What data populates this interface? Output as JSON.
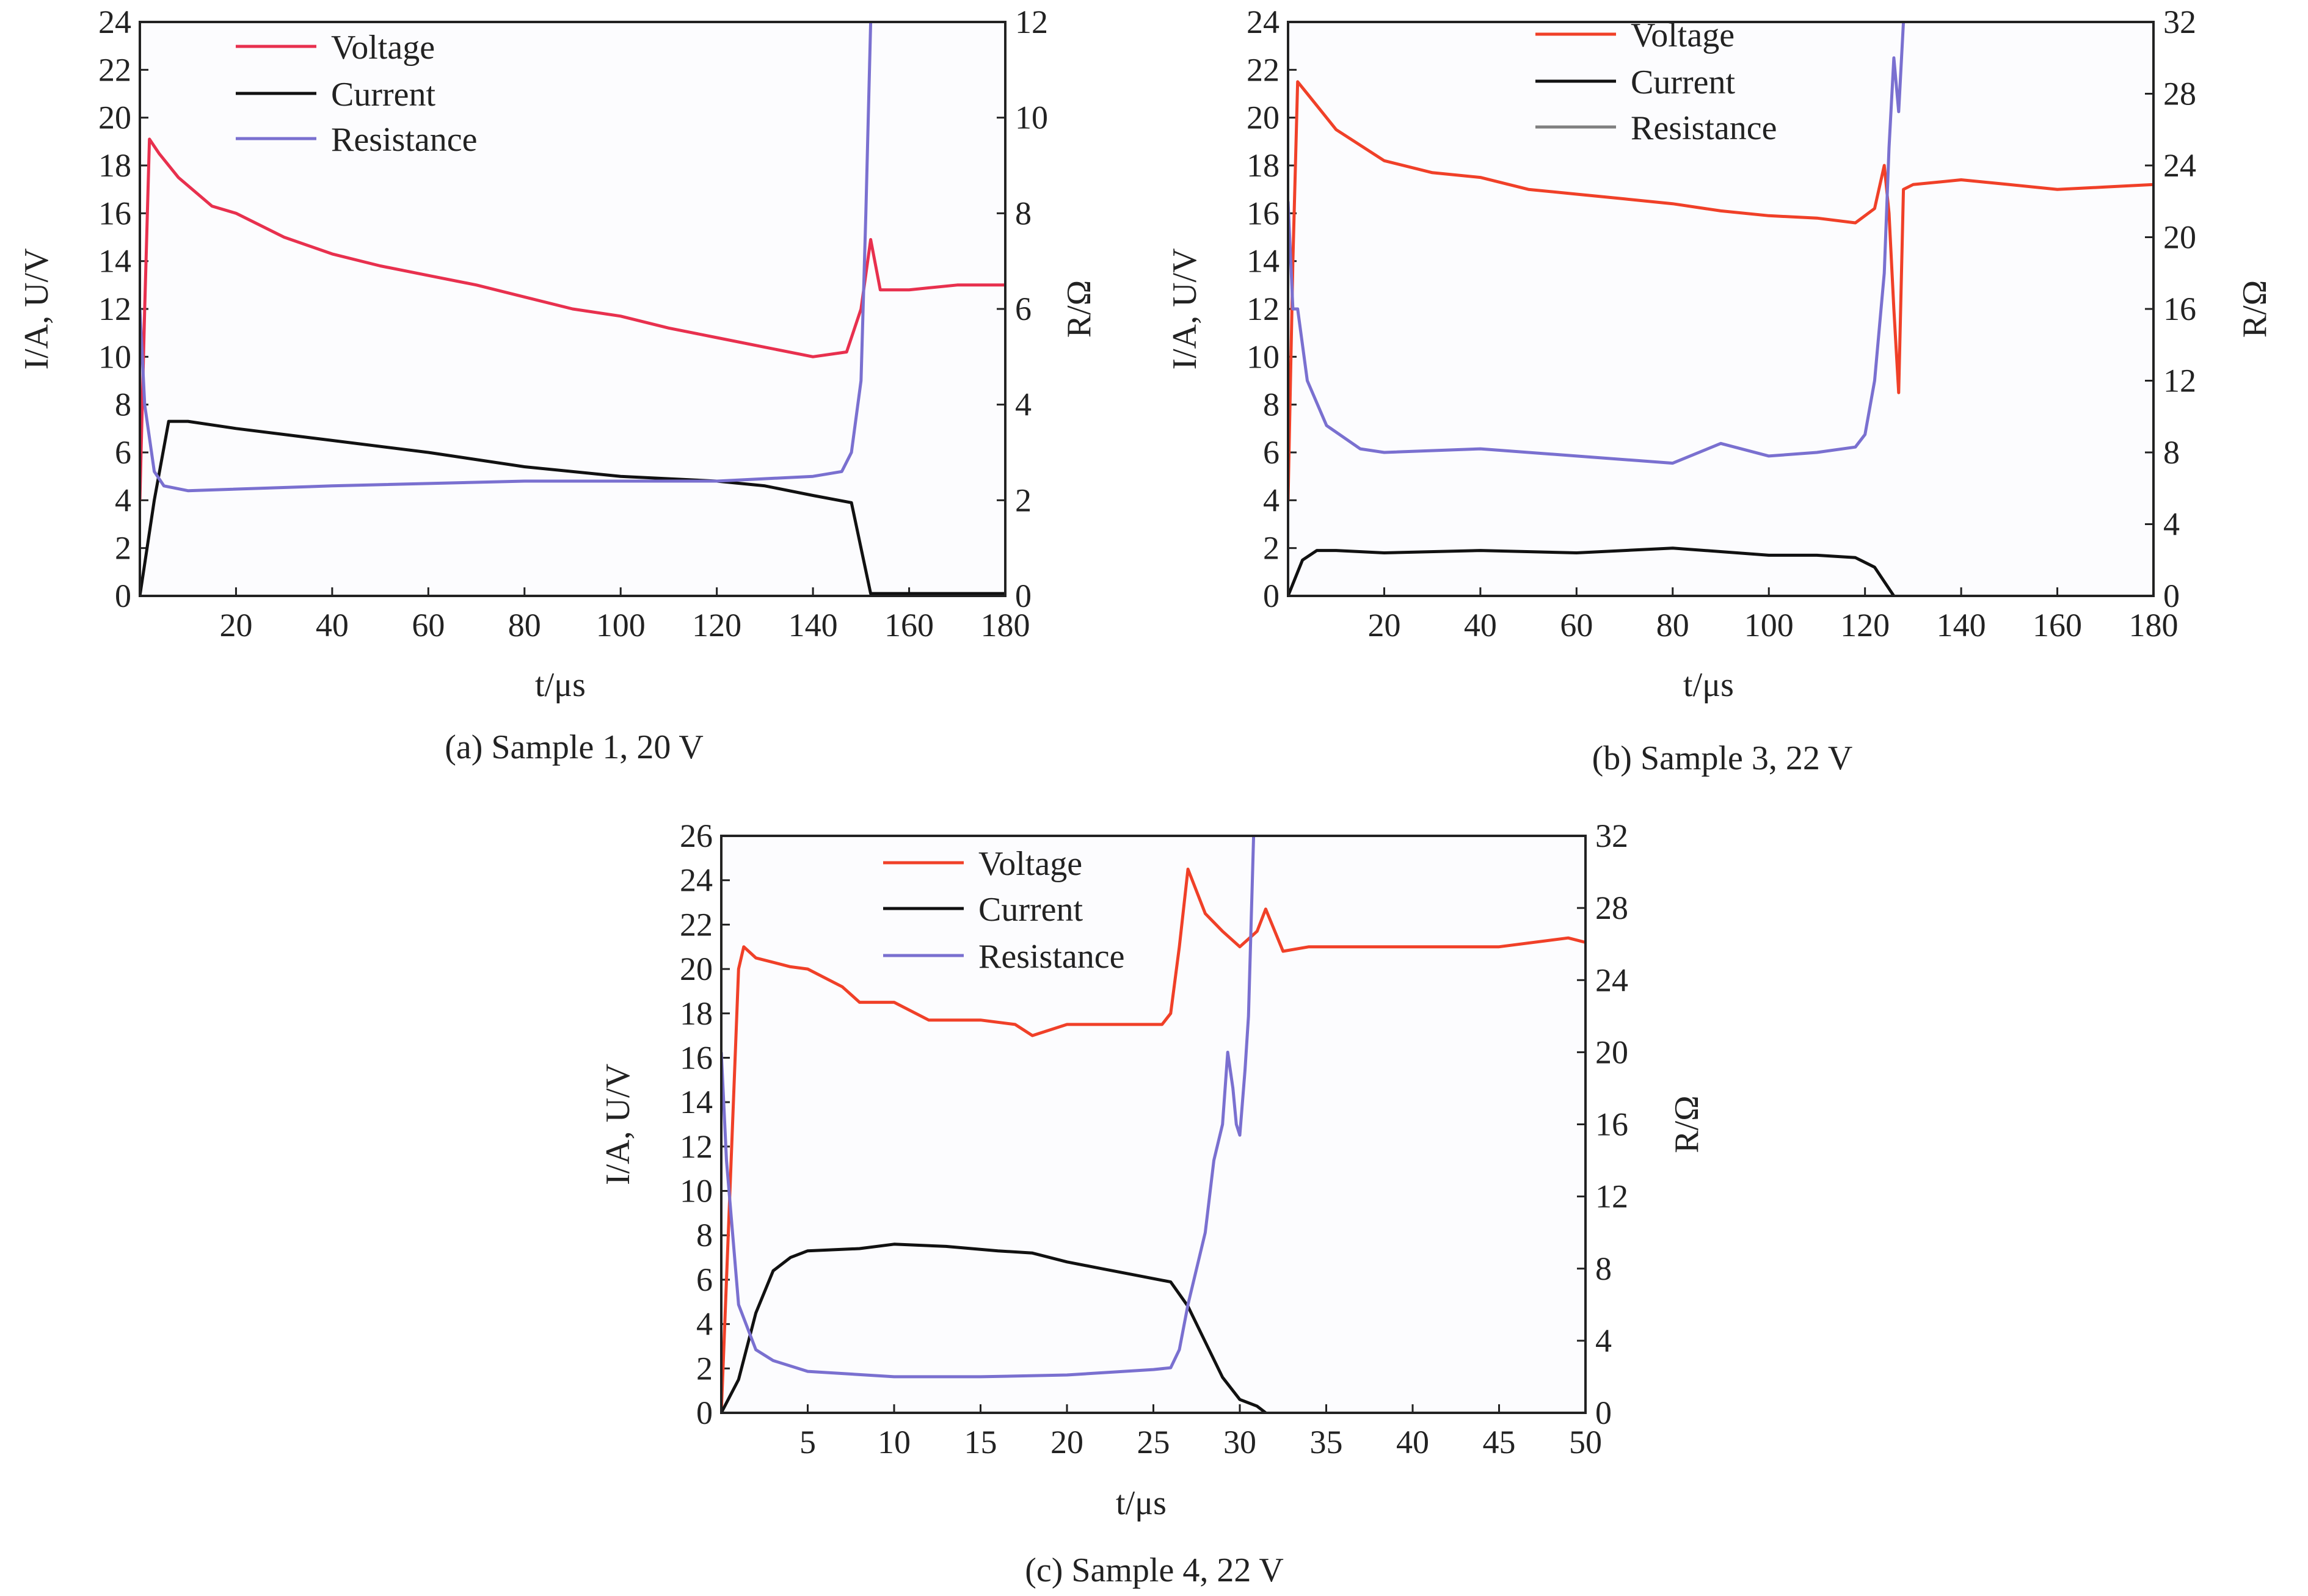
{
  "chart_data": [
    {
      "type": "line",
      "caption": "(a) Sample 1, 20 V",
      "xlabel": "t/μs",
      "ylabel": "I/A, U/V",
      "y2label": "R/Ω",
      "xlim": [
        0,
        180
      ],
      "xticks": [
        20,
        40,
        60,
        80,
        100,
        120,
        140,
        160,
        180
      ],
      "ylim": [
        0,
        24
      ],
      "yticks": [
        0,
        2,
        4,
        6,
        8,
        10,
        12,
        14,
        16,
        18,
        20,
        22,
        24
      ],
      "y2lim": [
        0,
        12
      ],
      "y2ticks": [
        0,
        2,
        4,
        6,
        8,
        10,
        12
      ],
      "legend": [
        "Voltage",
        "Current",
        "Resistance"
      ],
      "legend_colors": [
        "#e8304e",
        "#111111",
        "#7a70d0"
      ],
      "series": [
        {
          "name": "Voltage",
          "axis": "left",
          "color": "#e8304e",
          "points": [
            [
              0,
              4
            ],
            [
              1,
              12
            ],
            [
              2,
              19.1
            ],
            [
              4,
              18.5
            ],
            [
              8,
              17.5
            ],
            [
              15,
              16.3
            ],
            [
              20,
              16
            ],
            [
              30,
              15
            ],
            [
              40,
              14.3
            ],
            [
              50,
              13.8
            ],
            [
              60,
              13.4
            ],
            [
              70,
              13
            ],
            [
              80,
              12.5
            ],
            [
              90,
              12
            ],
            [
              100,
              11.7
            ],
            [
              110,
              11.2
            ],
            [
              120,
              10.8
            ],
            [
              130,
              10.4
            ],
            [
              140,
              10
            ],
            [
              147,
              10.2
            ],
            [
              150,
              12
            ],
            [
              152,
              14.9
            ],
            [
              154,
              12.8
            ],
            [
              160,
              12.8
            ],
            [
              170,
              13
            ],
            [
              180,
              13
            ]
          ]
        },
        {
          "name": "Current",
          "axis": "left",
          "color": "#111111",
          "points": [
            [
              0,
              0
            ],
            [
              3,
              4
            ],
            [
              6,
              7.3
            ],
            [
              10,
              7.3
            ],
            [
              20,
              7
            ],
            [
              40,
              6.5
            ],
            [
              60,
              6
            ],
            [
              80,
              5.4
            ],
            [
              100,
              5
            ],
            [
              120,
              4.8
            ],
            [
              130,
              4.6
            ],
            [
              140,
              4.2
            ],
            [
              148,
              3.9
            ],
            [
              150,
              2
            ],
            [
              152,
              0.1
            ],
            [
              160,
              0.1
            ],
            [
              180,
              0.1
            ]
          ]
        },
        {
          "name": "Resistance",
          "axis": "right",
          "color": "#7a70d0",
          "points": [
            [
              0,
              6
            ],
            [
              1,
              4
            ],
            [
              3,
              2.6
            ],
            [
              5,
              2.3
            ],
            [
              10,
              2.2
            ],
            [
              40,
              2.3
            ],
            [
              80,
              2.4
            ],
            [
              120,
              2.4
            ],
            [
              140,
              2.5
            ],
            [
              146,
              2.6
            ],
            [
              148,
              3
            ],
            [
              150,
              4.5
            ],
            [
              151,
              8
            ],
            [
              152,
              12
            ]
          ]
        }
      ]
    },
    {
      "type": "line",
      "caption": "(b) Sample 3, 22 V",
      "xlabel": "t/μs",
      "ylabel": "I/A, U/V",
      "y2label": "R/Ω",
      "xlim": [
        0,
        180
      ],
      "xticks": [
        20,
        40,
        60,
        80,
        100,
        120,
        140,
        160,
        180
      ],
      "ylim": [
        0,
        24
      ],
      "yticks": [
        0,
        2,
        4,
        6,
        8,
        10,
        12,
        14,
        16,
        18,
        20,
        22,
        24
      ],
      "y2lim": [
        0,
        32
      ],
      "y2ticks": [
        0,
        4,
        8,
        12,
        16,
        20,
        24,
        28,
        32
      ],
      "legend": [
        "Voltage",
        "Current",
        "Resistance"
      ],
      "legend_colors": [
        "#f04028",
        "#111111",
        "#808080"
      ],
      "series": [
        {
          "name": "Voltage",
          "axis": "left",
          "color": "#f04028",
          "points": [
            [
              0,
              4
            ],
            [
              1,
              14
            ],
            [
              2,
              21.5
            ],
            [
              4,
              21
            ],
            [
              10,
              19.5
            ],
            [
              20,
              18.2
            ],
            [
              30,
              17.7
            ],
            [
              40,
              17.5
            ],
            [
              50,
              17
            ],
            [
              60,
              16.8
            ],
            [
              70,
              16.6
            ],
            [
              80,
              16.4
            ],
            [
              90,
              16.1
            ],
            [
              100,
              15.9
            ],
            [
              110,
              15.8
            ],
            [
              118,
              15.6
            ],
            [
              122,
              16.2
            ],
            [
              124,
              18
            ],
            [
              125,
              16
            ],
            [
              126,
              12
            ],
            [
              127,
              8.5
            ],
            [
              128,
              17
            ],
            [
              130,
              17.2
            ],
            [
              140,
              17.4
            ],
            [
              150,
              17.2
            ],
            [
              160,
              17
            ],
            [
              170,
              17.1
            ],
            [
              180,
              17.2
            ]
          ]
        },
        {
          "name": "Current",
          "axis": "left",
          "color": "#111111",
          "points": [
            [
              0,
              0
            ],
            [
              3,
              1.5
            ],
            [
              6,
              1.9
            ],
            [
              10,
              1.9
            ],
            [
              20,
              1.8
            ],
            [
              40,
              1.9
            ],
            [
              60,
              1.8
            ],
            [
              80,
              2
            ],
            [
              100,
              1.7
            ],
            [
              110,
              1.7
            ],
            [
              118,
              1.6
            ],
            [
              122,
              1.2
            ],
            [
              126,
              0
            ]
          ]
        },
        {
          "name": "Resistance",
          "axis": "right",
          "color": "#7a70d0",
          "points": [
            [
              0,
              22
            ],
            [
              1,
              16
            ],
            [
              2,
              16
            ],
            [
              4,
              12
            ],
            [
              8,
              9.5
            ],
            [
              15,
              8.2
            ],
            [
              20,
              8
            ],
            [
              40,
              8.2
            ],
            [
              60,
              7.8
            ],
            [
              80,
              7.4
            ],
            [
              90,
              8.5
            ],
            [
              100,
              7.8
            ],
            [
              110,
              8
            ],
            [
              118,
              8.3
            ],
            [
              120,
              9
            ],
            [
              122,
              12
            ],
            [
              124,
              18
            ],
            [
              125,
              25
            ],
            [
              126,
              30
            ],
            [
              127,
              27
            ],
            [
              128,
              32
            ]
          ]
        }
      ]
    },
    {
      "type": "line",
      "caption": "(c) Sample 4, 22 V",
      "xlabel": "t/μs",
      "ylabel": "I/A, U/V",
      "y2label": "R/Ω",
      "xlim": [
        0,
        50
      ],
      "xticks": [
        5,
        10,
        15,
        20,
        25,
        30,
        35,
        40,
        45,
        50
      ],
      "ylim": [
        0,
        26
      ],
      "yticks": [
        0,
        2,
        4,
        6,
        8,
        10,
        12,
        14,
        16,
        18,
        20,
        22,
        24,
        26
      ],
      "y2lim": [
        0,
        32
      ],
      "y2ticks": [
        0,
        4,
        8,
        12,
        16,
        20,
        24,
        28,
        32
      ],
      "legend": [
        "Voltage",
        "Current",
        "Resistance"
      ],
      "legend_colors": [
        "#f04028",
        "#111111",
        "#7a70d0"
      ],
      "series": [
        {
          "name": "Voltage",
          "axis": "left",
          "color": "#f04028",
          "points": [
            [
              0,
              0
            ],
            [
              0.5,
              10
            ],
            [
              1,
              20
            ],
            [
              1.3,
              21
            ],
            [
              2,
              20.5
            ],
            [
              4,
              20.1
            ],
            [
              5,
              20
            ],
            [
              7,
              19.2
            ],
            [
              8,
              18.5
            ],
            [
              10,
              18.5
            ],
            [
              12,
              17.7
            ],
            [
              15,
              17.7
            ],
            [
              17,
              17.5
            ],
            [
              18,
              17
            ],
            [
              20,
              17.5
            ],
            [
              22,
              17.5
            ],
            [
              24,
              17.5
            ],
            [
              25.5,
              17.5
            ],
            [
              26,
              18
            ],
            [
              26.5,
              21
            ],
            [
              27,
              24.5
            ],
            [
              28,
              22.5
            ],
            [
              29,
              21.7
            ],
            [
              30,
              21
            ],
            [
              31,
              21.7
            ],
            [
              31.5,
              22.7
            ],
            [
              32.5,
              20.8
            ],
            [
              34,
              21
            ],
            [
              40,
              21
            ],
            [
              45,
              21
            ],
            [
              49,
              21.4
            ],
            [
              50,
              21.2
            ]
          ]
        },
        {
          "name": "Current",
          "axis": "left",
          "color": "#111111",
          "points": [
            [
              0,
              0
            ],
            [
              1,
              1.5
            ],
            [
              2,
              4.5
            ],
            [
              3,
              6.4
            ],
            [
              4,
              7
            ],
            [
              5,
              7.3
            ],
            [
              8,
              7.4
            ],
            [
              10,
              7.6
            ],
            [
              13,
              7.5
            ],
            [
              16,
              7.3
            ],
            [
              18,
              7.2
            ],
            [
              20,
              6.8
            ],
            [
              22,
              6.5
            ],
            [
              24,
              6.2
            ],
            [
              26,
              5.9
            ],
            [
              27,
              4.8
            ],
            [
              28,
              3.2
            ],
            [
              29,
              1.6
            ],
            [
              30,
              0.6
            ],
            [
              31,
              0.3
            ],
            [
              31.5,
              0
            ]
          ]
        },
        {
          "name": "Resistance",
          "axis": "right",
          "color": "#7a70d0",
          "points": [
            [
              0,
              20
            ],
            [
              0.3,
              14
            ],
            [
              1,
              6
            ],
            [
              2,
              3.5
            ],
            [
              3,
              2.9
            ],
            [
              5,
              2.3
            ],
            [
              10,
              2
            ],
            [
              15,
              2
            ],
            [
              20,
              2.1
            ],
            [
              25,
              2.4
            ],
            [
              26,
              2.5
            ],
            [
              26.5,
              3.5
            ],
            [
              27,
              6
            ],
            [
              28,
              10
            ],
            [
              28.5,
              14
            ],
            [
              29,
              16
            ],
            [
              29.3,
              20
            ],
            [
              29.6,
              18
            ],
            [
              29.8,
              16
            ],
            [
              30,
              15.4
            ],
            [
              30.3,
              19
            ],
            [
              30.5,
              22
            ],
            [
              30.8,
              32
            ]
          ]
        }
      ]
    }
  ]
}
